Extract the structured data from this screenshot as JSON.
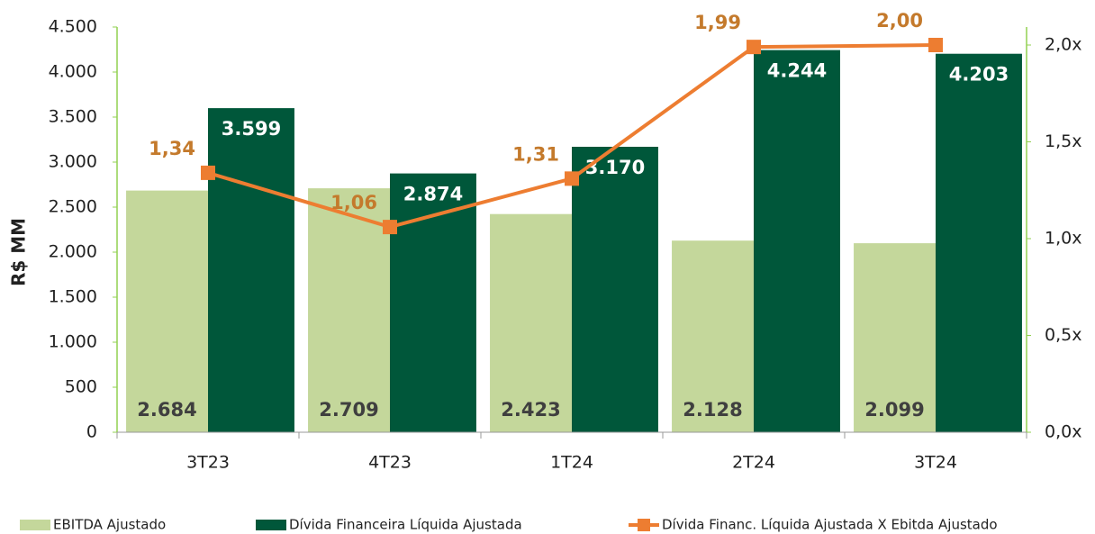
{
  "chart_data": {
    "type": "bar_line",
    "y_label": "R$ MM",
    "categories": [
      "3T23",
      "4T23",
      "1T24",
      "2T24",
      "3T24"
    ],
    "series": [
      {
        "name": "EBITDA Ajustado",
        "color": "#c4d79b",
        "type": "bar",
        "values": [
          2684,
          2709,
          2423,
          2128,
          2099
        ],
        "value_labels": [
          "2.684",
          "2.709",
          "2.423",
          "2.128",
          "2.099"
        ],
        "label_color": "#3f3f3f"
      },
      {
        "name": "Dívida Financeira Líquida Ajustada",
        "color": "#00573a",
        "type": "bar",
        "values": [
          3599,
          2874,
          3170,
          4244,
          4203
        ],
        "value_labels": [
          "3.599",
          "2.874",
          "3.170",
          "4.244",
          "4.203"
        ],
        "label_color": "#ffffff"
      },
      {
        "name": "Dívida Financ. Líquida Ajustada X Ebitda Ajustado",
        "color": "#ed7d31",
        "type": "line",
        "axis": "y2",
        "values": [
          1.34,
          1.06,
          1.31,
          1.99,
          2.0
        ],
        "value_labels": [
          "1,34",
          "1,06",
          "1,31",
          "1,99",
          "2,00"
        ],
        "label_color": "#c47a2c"
      }
    ],
    "ylim": [
      0,
      4500
    ],
    "yticks": [
      0,
      500,
      {
        "value": 1000,
        "label": "1.000"
      },
      {
        "value": 1500,
        "label": "1.500"
      },
      {
        "value": 2000,
        "label": "2.000"
      },
      {
        "value": 2500,
        "label": "2.500"
      },
      {
        "value": 3000,
        "label": "3.000"
      },
      {
        "value": 3500,
        "label": "3.500"
      },
      {
        "value": 4000,
        "label": "4.000"
      },
      {
        "value": 4500,
        "label": "4.500"
      }
    ],
    "y2lim": [
      0,
      2.093
    ],
    "y2ticks": [
      {
        "value": 0,
        "label": "0,0x"
      },
      {
        "value": 0.5,
        "label": "0,5x"
      },
      {
        "value": 1,
        "label": "1,0x"
      },
      {
        "value": 1.5,
        "label": "1,5x"
      },
      {
        "value": 2,
        "label": "2,0x"
      }
    ],
    "legend": "bottom",
    "axis_color": "#92d050"
  }
}
